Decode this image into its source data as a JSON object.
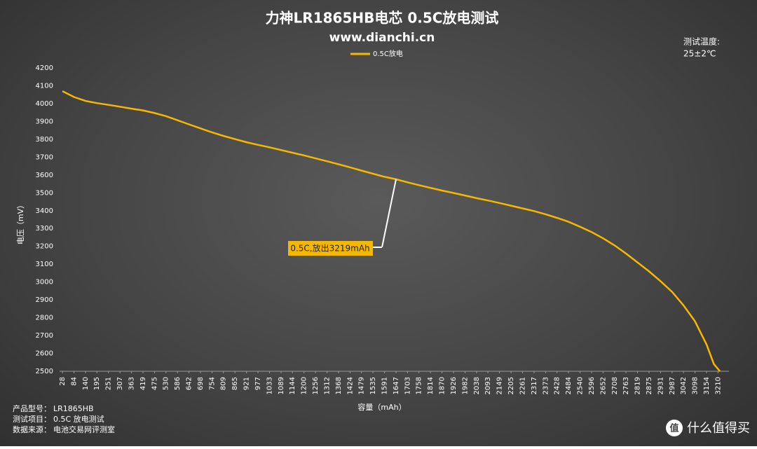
{
  "chart_data": {
    "type": "line",
    "title": "力神LR1865HB电芯 0.5C放电测试",
    "subtitle": "www.dianchi.cn",
    "temperature_label": "测试温度:",
    "temperature": "25±2℃",
    "x_label": "容量（mAh）",
    "y_label": "电压（mV）",
    "annotation": "0.5C,放出3219mAh",
    "legend": "top",
    "grid": false,
    "x": [
      28,
      84,
      140,
      195,
      251,
      307,
      363,
      419,
      475,
      530,
      586,
      642,
      698,
      754,
      809,
      865,
      921,
      977,
      1033,
      1089,
      1144,
      1200,
      1256,
      1312,
      1368,
      1424,
      1479,
      1535,
      1591,
      1647,
      1703,
      1758,
      1814,
      1870,
      1926,
      1982,
      2038,
      2093,
      2149,
      2205,
      2261,
      2317,
      2373,
      2428,
      2484,
      2540,
      2596,
      2652,
      2708,
      2763,
      2819,
      2875,
      2931,
      2987,
      3042,
      3098,
      3154,
      3190,
      3219
    ],
    "series": [
      {
        "name": "0.5C放电",
        "color": "#f5b800",
        "values": [
          4070,
          4037,
          4015,
          4003,
          3993,
          3983,
          3972,
          3962,
          3947,
          3930,
          3907,
          3884,
          3861,
          3839,
          3819,
          3801,
          3784,
          3769,
          3755,
          3740,
          3725,
          3710,
          3693,
          3677,
          3660,
          3643,
          3625,
          3607,
          3590,
          3576,
          3559,
          3543,
          3528,
          3513,
          3499,
          3485,
          3470,
          3457,
          3443,
          3428,
          3413,
          3398,
          3380,
          3360,
          3338,
          3310,
          3280,
          3245,
          3205,
          3160,
          3110,
          3060,
          3005,
          2945,
          2870,
          2780,
          2650,
          2540,
          2500
        ]
      }
    ],
    "xlim": [
      14,
      3263
    ],
    "xticks": [
      28,
      84,
      140,
      195,
      251,
      307,
      363,
      419,
      475,
      530,
      586,
      642,
      698,
      754,
      809,
      865,
      921,
      977,
      1033,
      1089,
      1144,
      1200,
      1256,
      1312,
      1368,
      1424,
      1479,
      1535,
      1591,
      1647,
      1703,
      1758,
      1814,
      1870,
      1926,
      1982,
      2038,
      2093,
      2149,
      2205,
      2261,
      2317,
      2373,
      2428,
      2484,
      2540,
      2596,
      2652,
      2708,
      2763,
      2819,
      2875,
      2931,
      2987,
      3042,
      3098,
      3154,
      3210
    ],
    "ylim": [
      2500,
      4200
    ],
    "yticks": [
      2500,
      2600,
      2700,
      2800,
      2900,
      3000,
      3100,
      3200,
      3300,
      3400,
      3500,
      3600,
      3700,
      3800,
      3900,
      4000,
      4100,
      4200
    ],
    "notes": [
      {
        "label": "产品型号：",
        "value": "LR1865HB"
      },
      {
        "label": "测试项目：",
        "value": "0.5C 放电测试"
      },
      {
        "label": "数据来源：",
        "value": "电池交易网评测室"
      }
    ],
    "watermark": "什么值得买",
    "watermark_icon": "值"
  }
}
